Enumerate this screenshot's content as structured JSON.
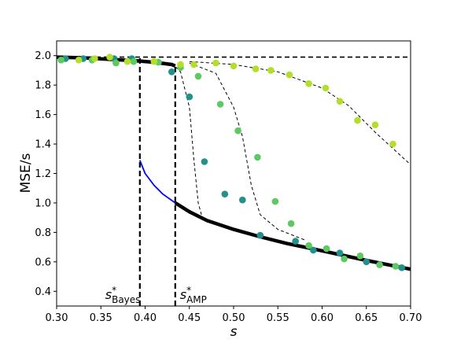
{
  "chart_data": {
    "type": "scatter",
    "xlabel": "s",
    "ylabel": "MSE/s",
    "xlim": [
      0.3,
      0.7
    ],
    "ylim": [
      0.3,
      2.1
    ],
    "xticks": [
      "0.30",
      "0.35",
      "0.40",
      "0.45",
      "0.50",
      "0.55",
      "0.60",
      "0.65",
      "0.70"
    ],
    "yticks": [
      "0.4",
      "0.6",
      "0.8",
      "1.0",
      "1.2",
      "1.4",
      "1.6",
      "1.8",
      "2.0"
    ],
    "grid": false,
    "legend": "none",
    "annotations": [
      {
        "text": "s",
        "super": "*",
        "sub": "Bayes",
        "x": 0.394
      },
      {
        "text": "s",
        "super": "*",
        "sub": "AMP",
        "x": 0.434
      }
    ],
    "colors": {
      "teal": "#21918c",
      "green": "#5ec962",
      "yellow": "#b5de2b",
      "blue": "#0000ff",
      "black": "#000000"
    },
    "lines": [
      {
        "style": "dashed",
        "color": "#000000",
        "role": "upper-bound",
        "x": [
          0.3,
          0.7
        ],
        "y": [
          1.99,
          1.99
        ]
      },
      {
        "style": "solid-thick",
        "color": "#000000",
        "role": "state-evolution-upper",
        "x": [
          0.3,
          0.33,
          0.36,
          0.39,
          0.41,
          0.43,
          0.434
        ],
        "y": [
          1.99,
          1.985,
          1.975,
          1.965,
          1.955,
          1.94,
          1.93
        ]
      },
      {
        "style": "solid",
        "color": "#0000ff",
        "role": "metastable",
        "x": [
          0.394,
          0.4,
          0.41,
          0.42,
          0.434
        ],
        "y": [
          1.29,
          1.2,
          1.12,
          1.06,
          1.0
        ]
      },
      {
        "style": "solid-thick",
        "color": "#000000",
        "role": "state-evolution-lower",
        "x": [
          0.434,
          0.45,
          0.47,
          0.5,
          0.53,
          0.56,
          0.6,
          0.65,
          0.7
        ],
        "y": [
          1.0,
          0.94,
          0.88,
          0.82,
          0.77,
          0.725,
          0.675,
          0.61,
          0.55
        ]
      },
      {
        "style": "dashed-thick",
        "color": "#000000",
        "role": "s-bayes-marker",
        "x": [
          0.394,
          0.394
        ],
        "y": [
          0.3,
          1.99
        ]
      },
      {
        "style": "dashed-thick",
        "color": "#000000",
        "role": "s-amp-marker",
        "x": [
          0.434,
          0.434
        ],
        "y": [
          0.3,
          1.93
        ]
      },
      {
        "style": "dashed-thin",
        "color": "#000000",
        "role": "finite-size-1",
        "x": [
          0.43,
          0.44,
          0.45,
          0.455,
          0.46,
          0.465,
          0.47
        ],
        "y": [
          1.95,
          1.89,
          1.65,
          1.3,
          1.0,
          0.89,
          0.87
        ]
      },
      {
        "style": "dashed-thin",
        "color": "#000000",
        "role": "finite-size-2",
        "x": [
          0.45,
          0.48,
          0.5,
          0.51,
          0.52,
          0.53,
          0.55,
          0.58
        ],
        "y": [
          1.95,
          1.88,
          1.65,
          1.45,
          1.12,
          0.92,
          0.82,
          0.75
        ]
      },
      {
        "style": "dashed-thin",
        "color": "#000000",
        "role": "finite-size-3",
        "x": [
          0.45,
          0.5,
          0.55,
          0.6,
          0.63,
          0.66,
          0.7
        ],
        "y": [
          1.96,
          1.94,
          1.89,
          1.78,
          1.66,
          1.48,
          1.26
        ]
      }
    ],
    "series": [
      {
        "color": "#21918c",
        "x": [
          0.31,
          0.33,
          0.365,
          0.385,
          0.43,
          0.45,
          0.467,
          0.49,
          0.51,
          0.53,
          0.57,
          0.59,
          0.62,
          0.65,
          0.69
        ],
        "y": [
          1.98,
          1.98,
          1.98,
          1.98,
          1.89,
          1.72,
          1.28,
          1.06,
          1.02,
          0.78,
          0.74,
          0.68,
          0.66,
          0.6,
          0.56
        ]
      },
      {
        "color": "#5ec962",
        "x": [
          0.305,
          0.34,
          0.367,
          0.387,
          0.415,
          0.44,
          0.46,
          0.485,
          0.505,
          0.527,
          0.547,
          0.565,
          0.585,
          0.605,
          0.625,
          0.643,
          0.665,
          0.683
        ],
        "y": [
          1.97,
          1.97,
          1.95,
          1.96,
          1.955,
          1.92,
          1.86,
          1.67,
          1.49,
          1.31,
          1.01,
          0.86,
          0.71,
          0.69,
          0.62,
          0.64,
          0.58,
          0.57
        ]
      },
      {
        "color": "#b5de2b",
        "x": [
          0.325,
          0.343,
          0.36,
          0.38,
          0.41,
          0.44,
          0.455,
          0.48,
          0.5,
          0.525,
          0.542,
          0.563,
          0.585,
          0.604,
          0.62,
          0.64,
          0.66,
          0.68
        ],
        "y": [
          1.97,
          1.98,
          1.99,
          1.96,
          1.96,
          1.94,
          1.94,
          1.95,
          1.93,
          1.91,
          1.9,
          1.87,
          1.81,
          1.78,
          1.69,
          1.56,
          1.53,
          1.4
        ]
      }
    ]
  }
}
